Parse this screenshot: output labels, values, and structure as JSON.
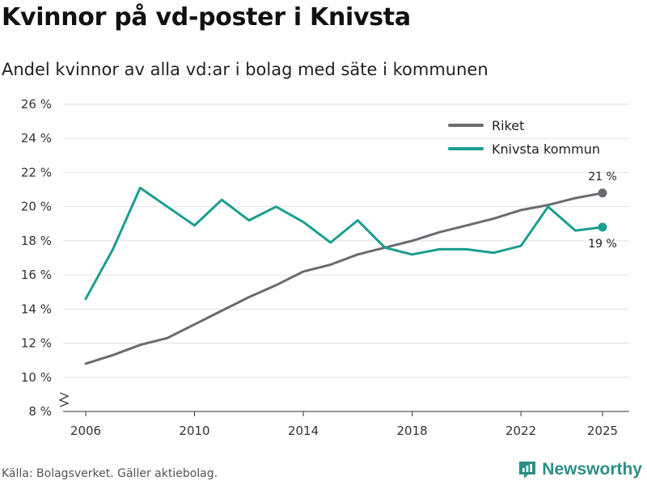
{
  "title": "Kvinnor på vd-poster i Knivsta",
  "subtitle": "Andel kvinnor av alla vd:ar i bolag med säte i kommunen",
  "source": "Källa: Bolagsverket. Gäller aktiebolag.",
  "brand": {
    "name": "Newsworthy",
    "icon": "newsworthy-logo-icon"
  },
  "chart_data": {
    "type": "line",
    "x": [
      2006,
      2007,
      2008,
      2009,
      2010,
      2011,
      2012,
      2013,
      2014,
      2015,
      2016,
      2017,
      2018,
      2019,
      2020,
      2021,
      2022,
      2023,
      2024,
      2025
    ],
    "series": [
      {
        "name": "Riket",
        "color": "#6b6a70",
        "values": [
          10.8,
          11.3,
          11.9,
          12.3,
          13.1,
          13.9,
          14.7,
          15.4,
          16.2,
          16.6,
          17.2,
          17.6,
          18.0,
          18.5,
          18.9,
          19.3,
          19.8,
          20.1,
          20.5,
          20.8
        ],
        "end_label": "21 %"
      },
      {
        "name": "Knivsta kommun",
        "color": "#1a9e8f",
        "values": [
          14.6,
          17.5,
          21.1,
          20.0,
          18.9,
          20.4,
          19.2,
          20.0,
          19.1,
          17.9,
          19.2,
          17.6,
          17.2,
          17.5,
          17.5,
          17.3,
          17.7,
          20.0,
          18.6,
          18.8
        ],
        "end_label": "19 %"
      }
    ],
    "x_ticks": [
      2006,
      2010,
      2014,
      2018,
      2022,
      2025
    ],
    "y_ticks": [
      8,
      10,
      12,
      14,
      16,
      18,
      20,
      22,
      24,
      26
    ],
    "y_tick_labels": [
      "8 %",
      "10 %",
      "12 %",
      "14 %",
      "16 %",
      "18 %",
      "20 %",
      "22 %",
      "24 %",
      "26 %"
    ],
    "xlim": [
      2005,
      2026
    ],
    "ylim": [
      8,
      26
    ],
    "axis_break": true,
    "grid": true,
    "legend": "top-right"
  }
}
